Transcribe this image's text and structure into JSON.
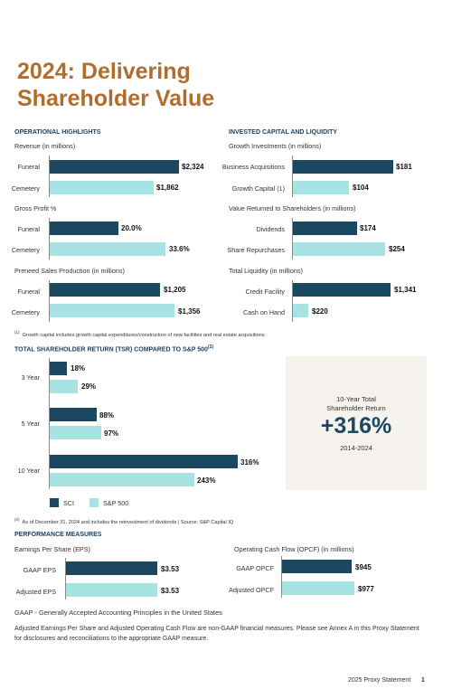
{
  "title_line1": "2024: Delivering",
  "title_line2": "Shareholder Value",
  "operational": {
    "heading": "OPERATIONAL HIGHLIGHTS",
    "revenue_label": "Revenue (in millions)",
    "revenue": [
      {
        "label": "Funeral",
        "value": "$2,324",
        "amount": 2324
      },
      {
        "label": "Cemetery",
        "value": "$1,862",
        "amount": 1862
      }
    ],
    "gross_profit_label": "Gross Profit %",
    "gross_profit": [
      {
        "label": "Funeral",
        "value": "20.0%",
        "amount": 20.0
      },
      {
        "label": "Cemetery",
        "value": "33.6%",
        "amount": 33.6
      }
    ],
    "preneed_label": "Preneed Sales Production (in millions)",
    "preneed": [
      {
        "label": "Funeral",
        "value": "$1,205",
        "amount": 1205
      },
      {
        "label": "Cemetery",
        "value": "$1,356",
        "amount": 1356
      }
    ]
  },
  "invested": {
    "heading": "INVESTED CAPITAL AND LIQUIDITY",
    "growth_label": "Growth Investments (in millions)",
    "growth": [
      {
        "label": "Business Acquisitions",
        "value": "$181",
        "amount": 181
      },
      {
        "label": "Growth Capital (1)",
        "value": "$104",
        "amount": 104
      }
    ],
    "returned_label": "Value Returned to Shareholders (in millions)",
    "returned": [
      {
        "label": "Dividends",
        "value": "$174",
        "amount": 174
      },
      {
        "label": "Share Repurchases",
        "value": "$254",
        "amount": 254
      }
    ],
    "liquidity_label": "Total Liquidity (in millions)",
    "liquidity": [
      {
        "label": "Credit Facility",
        "value": "$1,341",
        "amount": 1341
      },
      {
        "label": "Cash on Hand",
        "value": "$220",
        "amount": 220
      }
    ]
  },
  "footnote1_num": "(1)",
  "footnote1": "Growth capital includes growth capital expenditures/construction of new facilities and real estate acquisitions",
  "tsr": {
    "heading": "TOTAL SHAREHOLDER RETURN (TSR) COMPARED TO S&P 500",
    "heading_sup": "(2)",
    "groups": [
      {
        "label": "3 Year",
        "sci": "18%",
        "sp": "29%",
        "sci_amount": 18,
        "sp_amount": 29
      },
      {
        "label": "5 Year",
        "sci": "88%",
        "sp": "97%",
        "sci_amount": 88,
        "sp_amount": 97
      },
      {
        "label": "10 Year",
        "sci": "316%",
        "sp": "243%",
        "sci_amount": 316,
        "sp_amount": 243
      }
    ],
    "legend_sci": "SCI",
    "legend_sp": "S&P 500",
    "box_line1": "10-Year Total",
    "box_line2": "Shareholder Return",
    "box_value": "+316%",
    "box_period": "2014-2024",
    "colors": {
      "sci": "#1b4860",
      "sp": "#a8e3e3"
    }
  },
  "footnote2_num": "(2)",
  "footnote2": "As of December 31, 2024 and includes the reinvestment of dividends | Source: S&P Capital IQ",
  "performance": {
    "heading": "PERFORMANCE MEASURES",
    "eps_label": "Earnings Per Share (EPS)",
    "eps": [
      {
        "label": "GAAP EPS",
        "value": "$3.53",
        "amount": 3.53
      },
      {
        "label": "Adjusted EPS",
        "value": "$3.53",
        "amount": 3.53
      }
    ],
    "opcf_label": "Operating Cash Flow (OPCF) (in millions)",
    "opcf": [
      {
        "label": "GAAP OPCF",
        "value": "$945",
        "amount": 945
      },
      {
        "label": "Adjusted OPCF",
        "value": "$977",
        "amount": 977
      }
    ]
  },
  "gaap_note": "GAAP - Generally Accepted Accounting Principles in the United States",
  "nongaap_note_line1": "Adjusted Earnings Per Share and Adjusted Operating Cash Flow are non-GAAP financial measures. Please see Annex A in this Proxy Statement",
  "nongaap_note_line2": "for disclosures and reconciliations to the appropriate GAAP measure.",
  "footer_label": "2025 Proxy Statement",
  "page_number": "1"
}
